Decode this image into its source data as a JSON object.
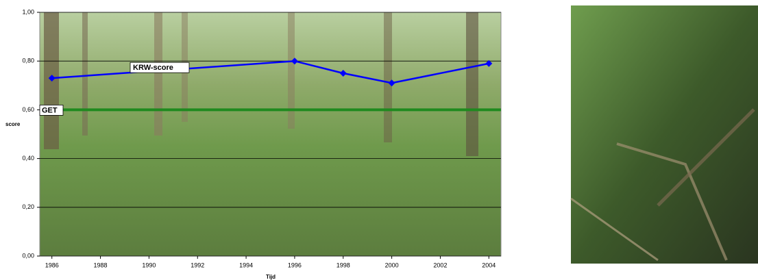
{
  "chart_data": {
    "type": "line",
    "x_label": "Tijd",
    "y_label": "score",
    "x": [
      1986,
      1996,
      1998,
      2000,
      2004
    ],
    "series": [
      {
        "name": "KRW-score",
        "color": "#0000ff",
        "values": [
          0.73,
          0.8,
          0.75,
          0.71,
          0.79
        ]
      }
    ],
    "reference_lines": [
      {
        "name": "GET",
        "value": 0.6,
        "color": "#1f8a1f"
      }
    ],
    "xlim": [
      1985.5,
      2004.5
    ],
    "xticks": [
      1986,
      1988,
      1990,
      1992,
      1994,
      1996,
      1998,
      2000,
      2002,
      2004
    ],
    "ylim": [
      0,
      1
    ],
    "yticks": [
      {
        "value": 0,
        "label": "0,00"
      },
      {
        "value": 0.2,
        "label": "0,20"
      },
      {
        "value": 0.4,
        "label": "0,40"
      },
      {
        "value": 0.6,
        "label": "0,60"
      },
      {
        "value": 0.8,
        "label": "0,80"
      },
      {
        "value": 1,
        "label": "1,00"
      }
    ],
    "grid": true
  }
}
